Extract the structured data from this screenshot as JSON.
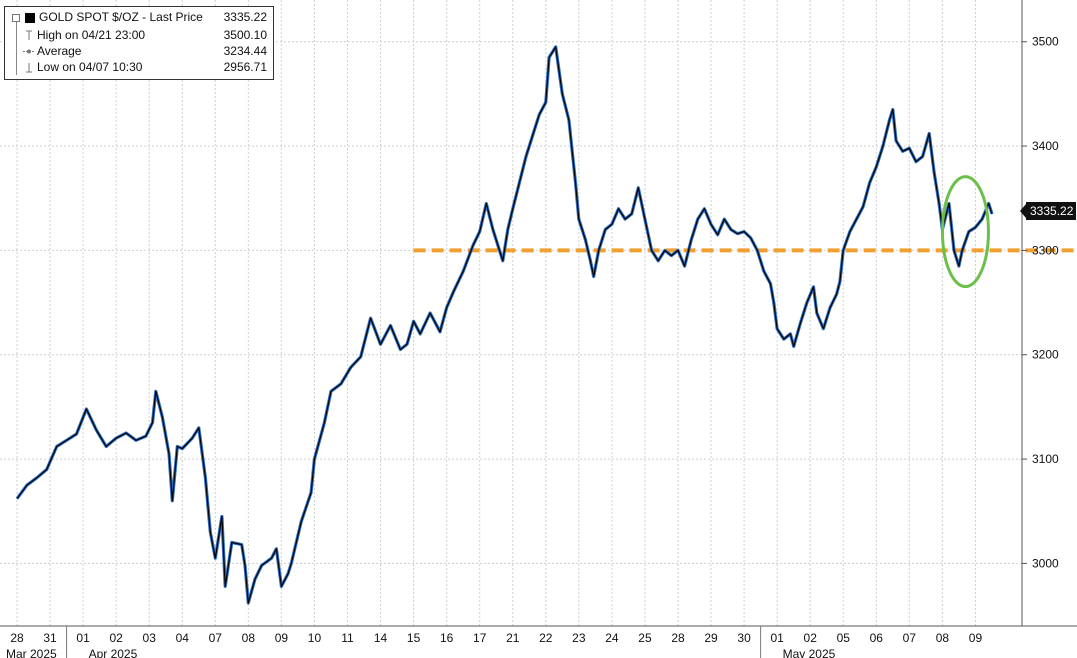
{
  "legend": {
    "title": "GOLD SPOT $/OZ - Last Price",
    "last_value": "3335.22",
    "rows": [
      {
        "label": "High on 04/21 23:00",
        "value": "3500.10"
      },
      {
        "label": "Average",
        "value": "3234.44"
      },
      {
        "label": "Low on 04/07 10:30",
        "value": "2956.71"
      }
    ]
  },
  "last_price_tag": "3335.22",
  "colors": {
    "price_line": "#000000",
    "price_shadow": "#2f6fc2",
    "support_line": "#f0a030",
    "ellipse": "#6cc04a",
    "grid": "#cfcfcf"
  },
  "chart_data": {
    "type": "line",
    "title": "GOLD SPOT $/OZ - Last Price",
    "ylim": [
      2940,
      3540
    ],
    "y_ticks": [
      3000,
      3100,
      3200,
      3300,
      3400,
      3500
    ],
    "y_axis_side": "right",
    "grid": true,
    "x_ticks": [
      "28",
      "31",
      "01",
      "02",
      "03",
      "04",
      "07",
      "08",
      "09",
      "10",
      "11",
      "14",
      "15",
      "16",
      "17",
      "21",
      "22",
      "23",
      "24",
      "25",
      "28",
      "29",
      "30",
      "01",
      "02",
      "05",
      "06",
      "07",
      "08",
      "09"
    ],
    "month_labels": [
      {
        "label": "Mar 2025",
        "start_tick": 0
      },
      {
        "label": "Apr 2025",
        "start_tick": 2
      },
      {
        "label": "May 2025",
        "start_tick": 23
      }
    ],
    "series": [
      {
        "values": [
          [
            0.0,
            3062
          ],
          [
            0.3,
            3075
          ],
          [
            0.6,
            3082
          ],
          [
            0.9,
            3090
          ],
          [
            1.2,
            3112
          ],
          [
            1.5,
            3118
          ],
          [
            1.8,
            3124
          ],
          [
            2.1,
            3148
          ],
          [
            2.4,
            3128
          ],
          [
            2.7,
            3112
          ],
          [
            3.0,
            3120
          ],
          [
            3.3,
            3125
          ],
          [
            3.6,
            3118
          ],
          [
            3.9,
            3122
          ],
          [
            4.1,
            3135
          ],
          [
            4.2,
            3165
          ],
          [
            4.4,
            3140
          ],
          [
            4.6,
            3105
          ],
          [
            4.7,
            3060
          ],
          [
            4.85,
            3112
          ],
          [
            5.0,
            3110
          ],
          [
            5.3,
            3120
          ],
          [
            5.5,
            3130
          ],
          [
            5.7,
            3082
          ],
          [
            5.85,
            3030
          ],
          [
            6.0,
            3005
          ],
          [
            6.2,
            3045
          ],
          [
            6.3,
            2978
          ],
          [
            6.5,
            3020
          ],
          [
            6.8,
            3018
          ],
          [
            6.9,
            2998
          ],
          [
            7.0,
            2962
          ],
          [
            7.2,
            2985
          ],
          [
            7.4,
            2998
          ],
          [
            7.7,
            3005
          ],
          [
            7.85,
            3014
          ],
          [
            8.0,
            2978
          ],
          [
            8.2,
            2990
          ],
          [
            8.3,
            3000
          ],
          [
            8.6,
            3040
          ],
          [
            8.9,
            3068
          ],
          [
            9.0,
            3100
          ],
          [
            9.3,
            3135
          ],
          [
            9.5,
            3165
          ],
          [
            9.8,
            3172
          ],
          [
            10.1,
            3188
          ],
          [
            10.4,
            3198
          ],
          [
            10.7,
            3235
          ],
          [
            11.0,
            3210
          ],
          [
            11.3,
            3228
          ],
          [
            11.6,
            3205
          ],
          [
            11.8,
            3210
          ],
          [
            12.0,
            3232
          ],
          [
            12.2,
            3220
          ],
          [
            12.5,
            3240
          ],
          [
            12.8,
            3222
          ],
          [
            13.0,
            3245
          ],
          [
            13.2,
            3260
          ],
          [
            13.5,
            3280
          ],
          [
            13.8,
            3305
          ],
          [
            14.0,
            3318
          ],
          [
            14.2,
            3345
          ],
          [
            14.4,
            3320
          ],
          [
            14.6,
            3300
          ],
          [
            14.7,
            3290
          ],
          [
            14.85,
            3320
          ],
          [
            15.0,
            3340
          ],
          [
            15.2,
            3365
          ],
          [
            15.4,
            3390
          ],
          [
            15.6,
            3410
          ],
          [
            15.8,
            3430
          ],
          [
            16.0,
            3442
          ],
          [
            16.1,
            3485
          ],
          [
            16.3,
            3495
          ],
          [
            16.5,
            3450
          ],
          [
            16.7,
            3425
          ],
          [
            16.8,
            3395
          ],
          [
            16.9,
            3365
          ],
          [
            17.0,
            3330
          ],
          [
            17.2,
            3310
          ],
          [
            17.35,
            3290
          ],
          [
            17.45,
            3275
          ],
          [
            17.6,
            3300
          ],
          [
            17.8,
            3320
          ],
          [
            18.0,
            3325
          ],
          [
            18.2,
            3340
          ],
          [
            18.4,
            3330
          ],
          [
            18.6,
            3335
          ],
          [
            18.8,
            3360
          ],
          [
            19.0,
            3330
          ],
          [
            19.2,
            3300
          ],
          [
            19.4,
            3290
          ],
          [
            19.6,
            3300
          ],
          [
            19.8,
            3295
          ],
          [
            20.0,
            3300
          ],
          [
            20.2,
            3285
          ],
          [
            20.4,
            3310
          ],
          [
            20.6,
            3330
          ],
          [
            20.8,
            3340
          ],
          [
            21.0,
            3325
          ],
          [
            21.2,
            3315
          ],
          [
            21.4,
            3330
          ],
          [
            21.6,
            3320
          ],
          [
            21.8,
            3316
          ],
          [
            22.0,
            3318
          ],
          [
            22.2,
            3312
          ],
          [
            22.4,
            3300
          ],
          [
            22.6,
            3280
          ],
          [
            22.8,
            3268
          ],
          [
            22.9,
            3250
          ],
          [
            23.0,
            3225
          ],
          [
            23.2,
            3215
          ],
          [
            23.4,
            3220
          ],
          [
            23.5,
            3208
          ],
          [
            23.7,
            3230
          ],
          [
            23.9,
            3250
          ],
          [
            24.1,
            3265
          ],
          [
            24.2,
            3240
          ],
          [
            24.4,
            3225
          ],
          [
            24.6,
            3245
          ],
          [
            24.8,
            3258
          ],
          [
            24.9,
            3270
          ],
          [
            25.0,
            3300
          ],
          [
            25.2,
            3318
          ],
          [
            25.4,
            3330
          ],
          [
            25.6,
            3342
          ],
          [
            25.8,
            3365
          ],
          [
            26.0,
            3380
          ],
          [
            26.2,
            3400
          ],
          [
            26.4,
            3425
          ],
          [
            26.5,
            3435
          ],
          [
            26.6,
            3405
          ],
          [
            26.8,
            3395
          ],
          [
            27.0,
            3398
          ],
          [
            27.2,
            3385
          ],
          [
            27.4,
            3390
          ],
          [
            27.6,
            3412
          ],
          [
            27.75,
            3375
          ],
          [
            27.9,
            3345
          ],
          [
            28.0,
            3320
          ],
          [
            28.2,
            3345
          ],
          [
            28.35,
            3300
          ],
          [
            28.5,
            3285
          ],
          [
            28.6,
            3300
          ],
          [
            28.8,
            3318
          ],
          [
            29.0,
            3322
          ],
          [
            29.2,
            3330
          ],
          [
            29.4,
            3345
          ],
          [
            29.5,
            3335
          ]
        ]
      }
    ],
    "annotations": [
      {
        "type": "horizontal_line",
        "y": 3300,
        "x_start": 12.0,
        "style": "dashed"
      },
      {
        "type": "ellipse",
        "x_center": 29.0,
        "y_center": 3318,
        "description_shown": false
      }
    ]
  }
}
